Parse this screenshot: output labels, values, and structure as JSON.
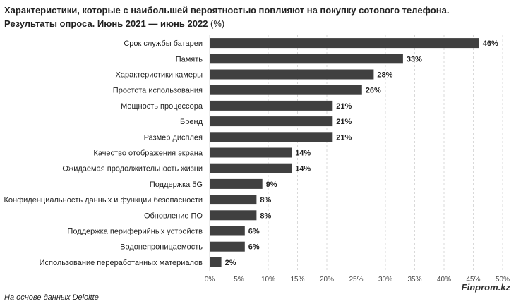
{
  "header": {
    "title": "Характеристики, которые с наибольшей вероятностью повлияют на покупку сотового телефона.",
    "subtitle_bold": "Результаты опроса. Июнь 2021 — июнь 2022",
    "subtitle_unit": " (%)"
  },
  "footer": {
    "source": "На основе данных Deloitte",
    "brand": "Finprom.kz"
  },
  "colors": {
    "bar": "#404040",
    "grid": "#d9d9d9",
    "text": "#222222"
  },
  "chart_data": {
    "type": "bar",
    "orientation": "horizontal",
    "title": "Характеристики, которые с наибольшей вероятностью повлияют на покупку сотового телефона.",
    "subtitle": "Результаты опроса. Июнь 2021 — июнь 2022 (%)",
    "categories": [
      "Срок службы батареи",
      "Память",
      "Характеристики камеры",
      "Простота использования",
      "Мощность процессора",
      "Бренд",
      "Размер дисплея",
      "Качество отображения экрана",
      "Ожидаемая продолжительность жизни",
      "Поддержка 5G",
      "Конфиденциальность данных и функции безопасности",
      "Обновление ПО",
      "Поддержка периферийных устройств",
      "Водонепроницаемость",
      "Использование переработанных материалов"
    ],
    "values": [
      46,
      33,
      28,
      26,
      21,
      21,
      21,
      14,
      14,
      9,
      8,
      8,
      6,
      6,
      2
    ],
    "data_labels": [
      "46%",
      "33%",
      "28%",
      "26%",
      "21%",
      "21%",
      "21%",
      "14%",
      "14%",
      "9%",
      "8%",
      "8%",
      "6%",
      "6%",
      "2%"
    ],
    "xlim": [
      0,
      50
    ],
    "xticks": [
      0,
      5,
      10,
      15,
      20,
      25,
      30,
      35,
      40,
      45,
      50
    ],
    "xtick_labels": [
      "0%",
      "5%",
      "10%",
      "15%",
      "20%",
      "25%",
      "30%",
      "35%",
      "40%",
      "45%",
      "50%"
    ],
    "grid": "vertical dashed"
  }
}
